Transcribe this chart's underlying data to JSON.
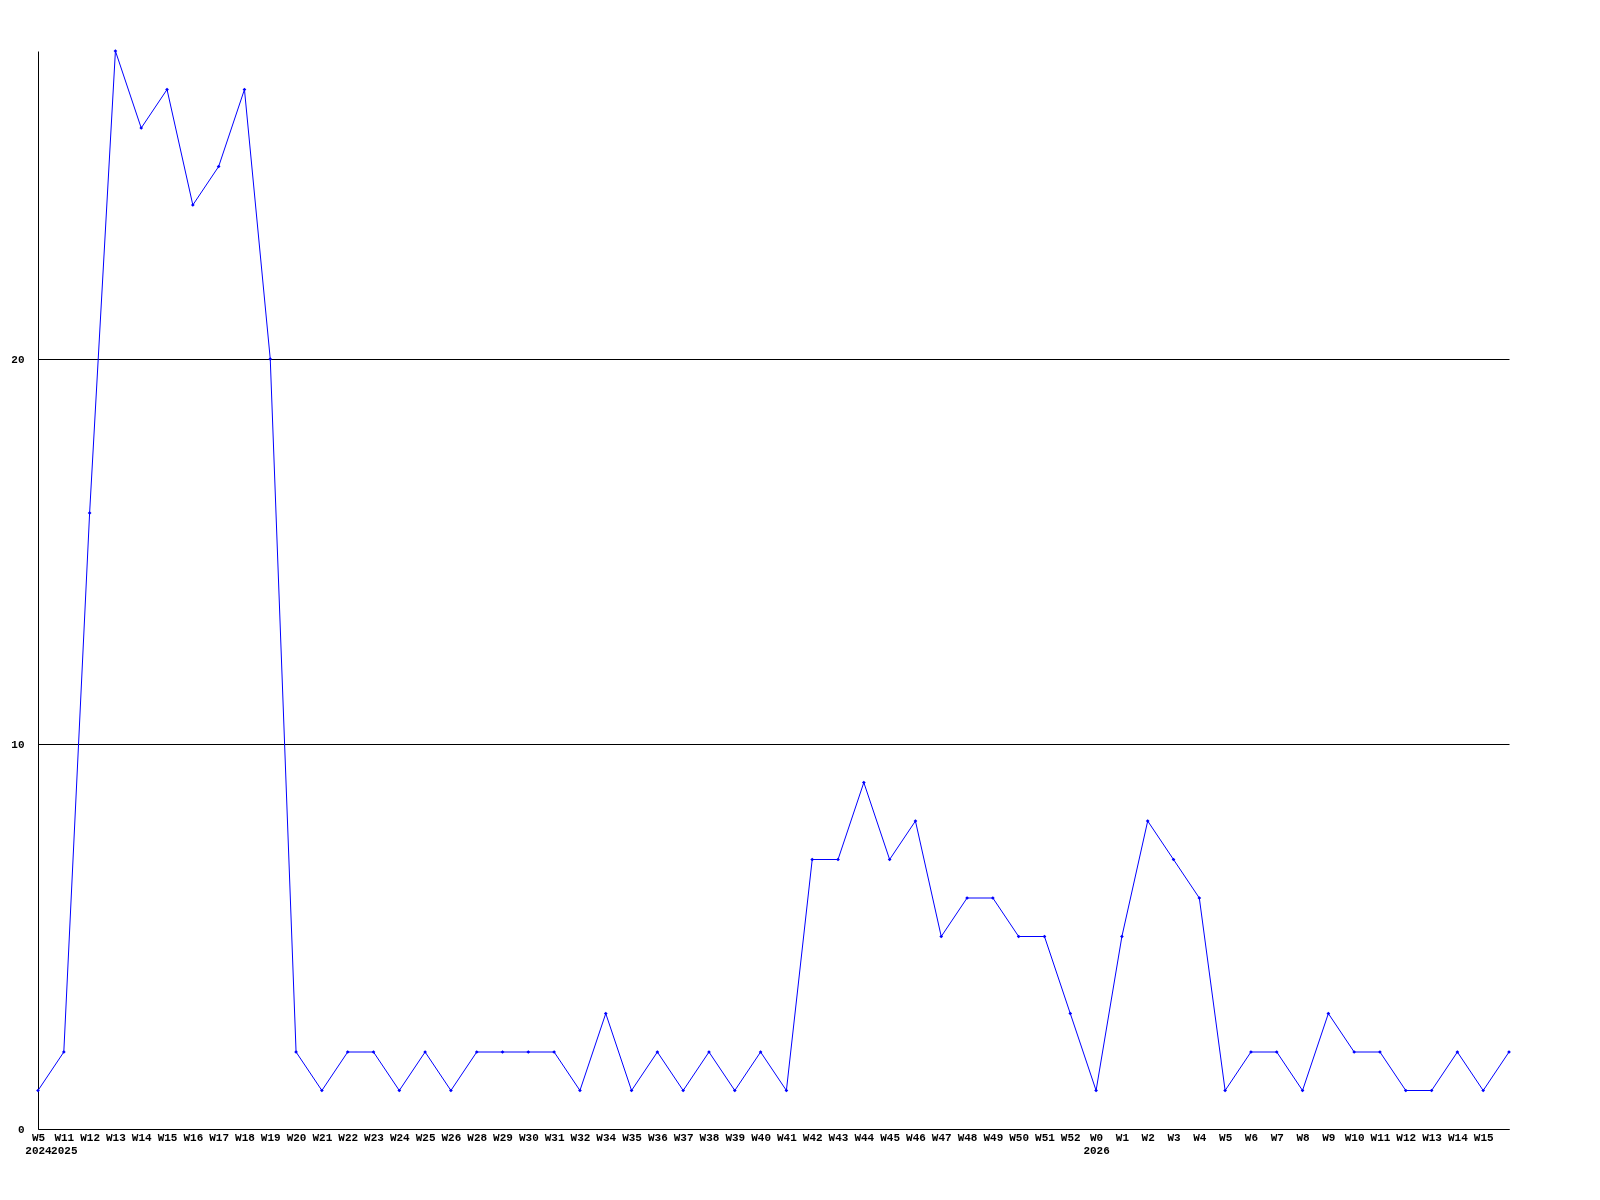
{
  "chart_data": {
    "type": "line",
    "categories": [
      "W5\n2024",
      "W11\n2025",
      "W12",
      "W13",
      "W14",
      "W15",
      "W16",
      "W17",
      "W18",
      "W19",
      "W20",
      "W21",
      "W22",
      "W23",
      "W24",
      "W25",
      "W26",
      "W28",
      "W29",
      "W30",
      "W31",
      "W32",
      "W34",
      "W35",
      "W36",
      "W37",
      "W38",
      "W39",
      "W40",
      "W41",
      "W42",
      "W43",
      "W44",
      "W45",
      "W46",
      "W47",
      "W48",
      "W49",
      "W50",
      "W51",
      "W52",
      "W0\n2026",
      "W1",
      "W2",
      "W3",
      "W4",
      "W5",
      "W6",
      "W7",
      "W8",
      "W9",
      "W10",
      "W11",
      "W12",
      "W13",
      "W14",
      "W15",
      null
    ],
    "series": [
      {
        "color": "#0000ff",
        "values": [
          1,
          2,
          16,
          28,
          26,
          27,
          24,
          25,
          27,
          20,
          2,
          1,
          2,
          2,
          1,
          2,
          1,
          2,
          2,
          2,
          2,
          1,
          3,
          1,
          2,
          1,
          2,
          1,
          2,
          1,
          7,
          7,
          9,
          7,
          8,
          5,
          6,
          6,
          5,
          5,
          3,
          1,
          5,
          8,
          7,
          6,
          1,
          2,
          2,
          1,
          3,
          2,
          2,
          1,
          1,
          2,
          1,
          2
        ]
      }
    ],
    "ylim": [
      0,
      28
    ],
    "yticks": [
      0,
      10,
      20
    ],
    "grid": "y",
    "marker": "diamond",
    "line_style": "solid",
    "legend": false
  }
}
